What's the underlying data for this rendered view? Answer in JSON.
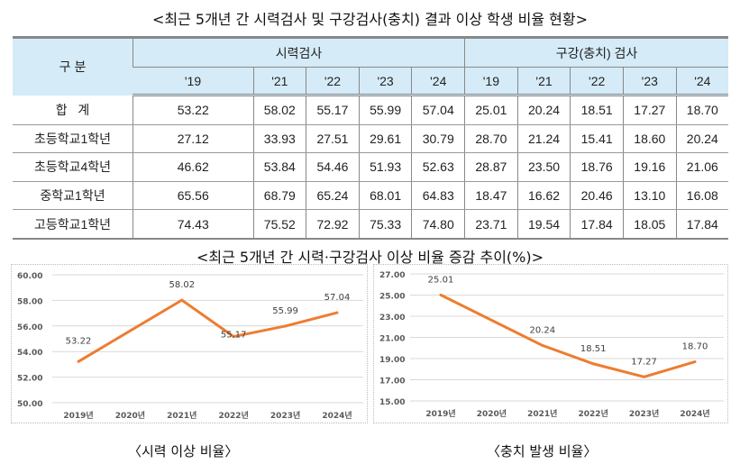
{
  "title": "<최근 5개년 간 시력검사 및 구강검사(충치) 결과 이상 학생 비율 현황>",
  "table": {
    "corner": "구 분",
    "group1": "시력검사",
    "group2": "구강(충치) 검사",
    "years": [
      "'19",
      "'21",
      "'22",
      "'23",
      "'24"
    ],
    "rows": [
      {
        "label": "합   계",
        "vision": [
          "53.22",
          "58.02",
          "55.17",
          "55.99",
          "57.04"
        ],
        "dental": [
          "25.01",
          "20.24",
          "18.51",
          "17.27",
          "18.70"
        ]
      },
      {
        "label": "초등학교1학년",
        "vision": [
          "27.12",
          "33.93",
          "27.51",
          "29.61",
          "30.79"
        ],
        "dental": [
          "28.70",
          "21.24",
          "15.41",
          "18.60",
          "20.24"
        ]
      },
      {
        "label": "초등학교4학년",
        "vision": [
          "46.62",
          "53.84",
          "54.46",
          "51.93",
          "52.63"
        ],
        "dental": [
          "28.87",
          "23.50",
          "18.76",
          "19.16",
          "21.06"
        ]
      },
      {
        "label": "중학교1학년",
        "vision": [
          "65.56",
          "68.79",
          "65.24",
          "68.01",
          "64.83"
        ],
        "dental": [
          "18.47",
          "16.62",
          "20.46",
          "13.10",
          "16.08"
        ]
      },
      {
        "label": "고등학교1학년",
        "vision": [
          "74.43",
          "75.52",
          "72.92",
          "75.33",
          "74.80"
        ],
        "dental": [
          "23.71",
          "19.54",
          "17.84",
          "18.05",
          "17.84"
        ]
      }
    ]
  },
  "chart_title": "<최근 5개년 간 시력·구강검사 이상 비율 증감 추이(%)>",
  "chart_data": [
    {
      "type": "line",
      "title": "〈시력 이상 비율〉",
      "categories": [
        "2019년",
        "2020년",
        "2021년",
        "2022년",
        "2023년",
        "2024년"
      ],
      "values": [
        53.22,
        null,
        58.02,
        55.17,
        55.99,
        57.04
      ],
      "labels": [
        "53.22",
        null,
        "58.02",
        "55.17",
        "55.99",
        "57.04"
      ],
      "ylim": [
        50,
        60
      ],
      "ystep": 2,
      "yticks": [
        "50.00",
        "52.00",
        "54.00",
        "56.00",
        "58.00",
        "60.00"
      ],
      "color": "#ed7d31",
      "grid": true
    },
    {
      "type": "line",
      "title": "〈충치 발생 비율〉",
      "categories": [
        "2019년",
        "2020년",
        "2021년",
        "2022년",
        "2023년",
        "2024년"
      ],
      "values": [
        25.01,
        null,
        20.24,
        18.51,
        17.27,
        18.7
      ],
      "labels": [
        "25.01",
        null,
        "20.24",
        "18.51",
        "17.27",
        "18.70"
      ],
      "ylim": [
        15,
        27
      ],
      "ystep": 2,
      "yticks": [
        "15.00",
        "17.00",
        "19.00",
        "21.00",
        "23.00",
        "25.00",
        "27.00"
      ],
      "color": "#ed7d31",
      "grid": true
    }
  ]
}
